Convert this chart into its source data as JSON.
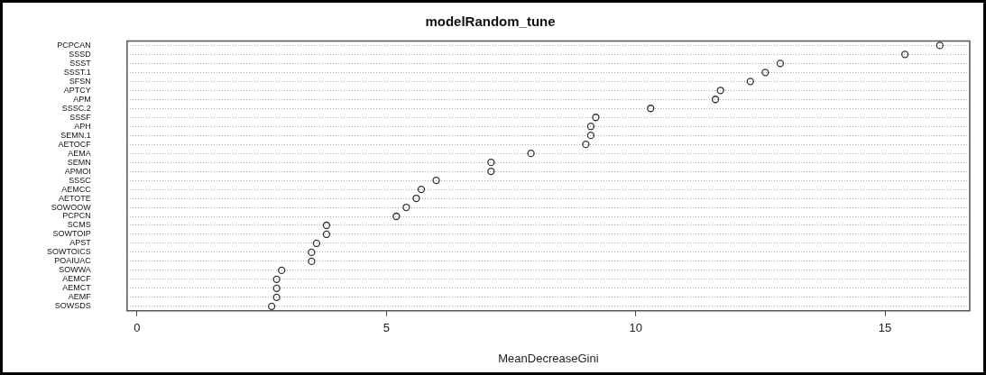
{
  "chart_data": {
    "type": "scatter",
    "orientation": "horizontal",
    "title": "modelRandom_tune",
    "xlabel": "MeanDecreaseGini",
    "categories": [
      "PCPCAN",
      "SSSD",
      "SSST",
      "SSST.1",
      "SFSN",
      "APTCY",
      "APM",
      "SSSC.2",
      "SSSF",
      "APH",
      "SEMN.1",
      "AETOCF",
      "AEMA",
      "SEMN",
      "APMOI",
      "SSSC",
      "AEMCC",
      "AETOTE",
      "SOWOOW",
      "PCPCN",
      "SCMS",
      "SOWTOIP",
      "APST",
      "SOWTOICS",
      "POAIUAC",
      "SOWWA",
      "AEMCF",
      "AEMCT",
      "AEMF",
      "SOWSDS"
    ],
    "values": [
      16.1,
      15.4,
      12.9,
      12.6,
      12.3,
      11.7,
      11.6,
      10.3,
      9.2,
      9.1,
      9.1,
      9.0,
      7.9,
      7.1,
      7.1,
      6.0,
      5.7,
      5.6,
      5.4,
      5.2,
      3.8,
      3.8,
      3.6,
      3.5,
      3.5,
      2.9,
      2.8,
      2.8,
      2.8,
      2.7
    ],
    "color": "#333333",
    "marker": "circle",
    "xlim": [
      -0.2,
      16.7
    ],
    "xticks": [
      0,
      5,
      10,
      15
    ],
    "grid": "y"
  }
}
